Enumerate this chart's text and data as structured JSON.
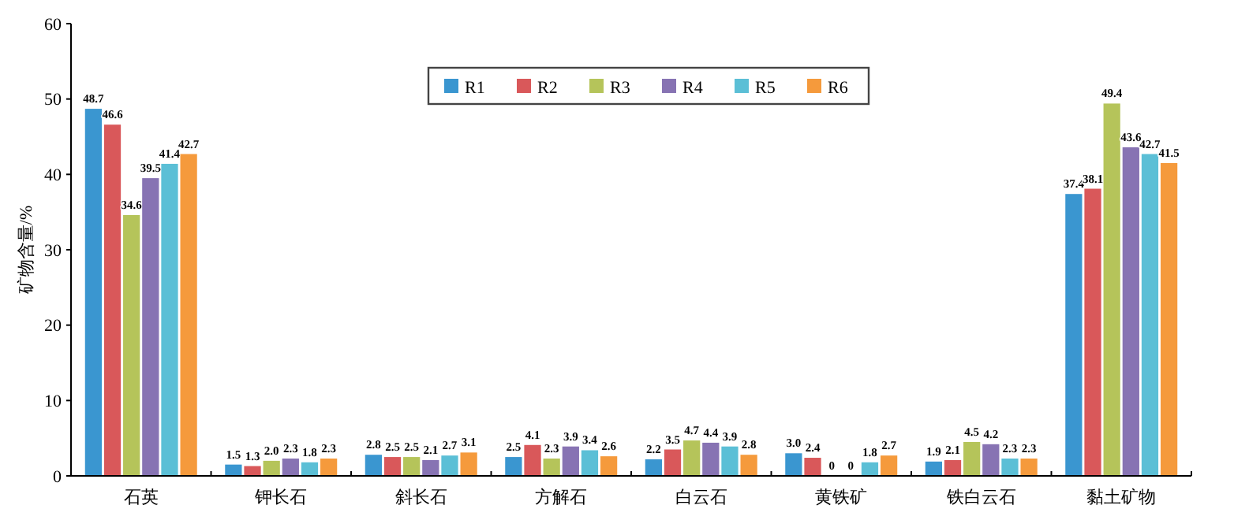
{
  "chart_data": {
    "type": "bar",
    "ylabel": "矿物含量/%",
    "categories": [
      "石英",
      "钾长石",
      "斜长石",
      "方解石",
      "白云石",
      "黄铁矿",
      "铁白云石",
      "黏土矿物"
    ],
    "series": [
      {
        "name": "R1",
        "color": "#3a96d0",
        "values": [
          48.7,
          1.5,
          2.8,
          2.5,
          2.2,
          3.0,
          1.9,
          37.4
        ],
        "value_labels": [
          "48.7",
          "1.5",
          "2.8",
          "2.5",
          "2.2",
          "3.0",
          "1.9",
          "37.4"
        ]
      },
      {
        "name": "R2",
        "color": "#d9585a",
        "values": [
          46.6,
          1.3,
          2.5,
          4.1,
          3.5,
          2.4,
          2.1,
          38.1
        ],
        "value_labels": [
          "46.6",
          "1.3",
          "2.5",
          "4.1",
          "3.5",
          "2.4",
          "2.1",
          "38.1"
        ]
      },
      {
        "name": "R3",
        "color": "#b5c45a",
        "values": [
          34.6,
          2.0,
          2.5,
          2.3,
          4.7,
          0,
          4.5,
          49.4
        ],
        "value_labels": [
          "34.6",
          "2.0",
          "2.5",
          "2.3",
          "4.7",
          "0",
          "4.5",
          "49.4"
        ]
      },
      {
        "name": "R4",
        "color": "#8773b3",
        "values": [
          39.5,
          2.3,
          2.1,
          3.9,
          4.4,
          0,
          4.2,
          43.6
        ],
        "value_labels": [
          "39.5",
          "2.3",
          "2.1",
          "3.9",
          "4.4",
          "0",
          "4.2",
          "43.6"
        ]
      },
      {
        "name": "R5",
        "color": "#5bbfd6",
        "values": [
          41.4,
          1.8,
          2.7,
          3.4,
          3.9,
          1.8,
          2.3,
          42.7
        ],
        "value_labels": [
          "41.4",
          "1.8",
          "2.7",
          "3.4",
          "3.9",
          "1.8",
          "2.3",
          "42.7"
        ]
      },
      {
        "name": "R6",
        "color": "#f59a3c",
        "values": [
          42.7,
          2.3,
          3.1,
          2.6,
          2.8,
          2.7,
          2.3,
          41.5
        ],
        "value_labels": [
          "42.7",
          "2.3",
          "3.1",
          "2.6",
          "2.8",
          "2.7",
          "2.3",
          "41.5"
        ]
      }
    ],
    "ylim": [
      0,
      60
    ],
    "yticks": [
      0,
      10,
      20,
      30,
      40,
      50,
      60
    ],
    "legend": "top",
    "grid": false
  }
}
